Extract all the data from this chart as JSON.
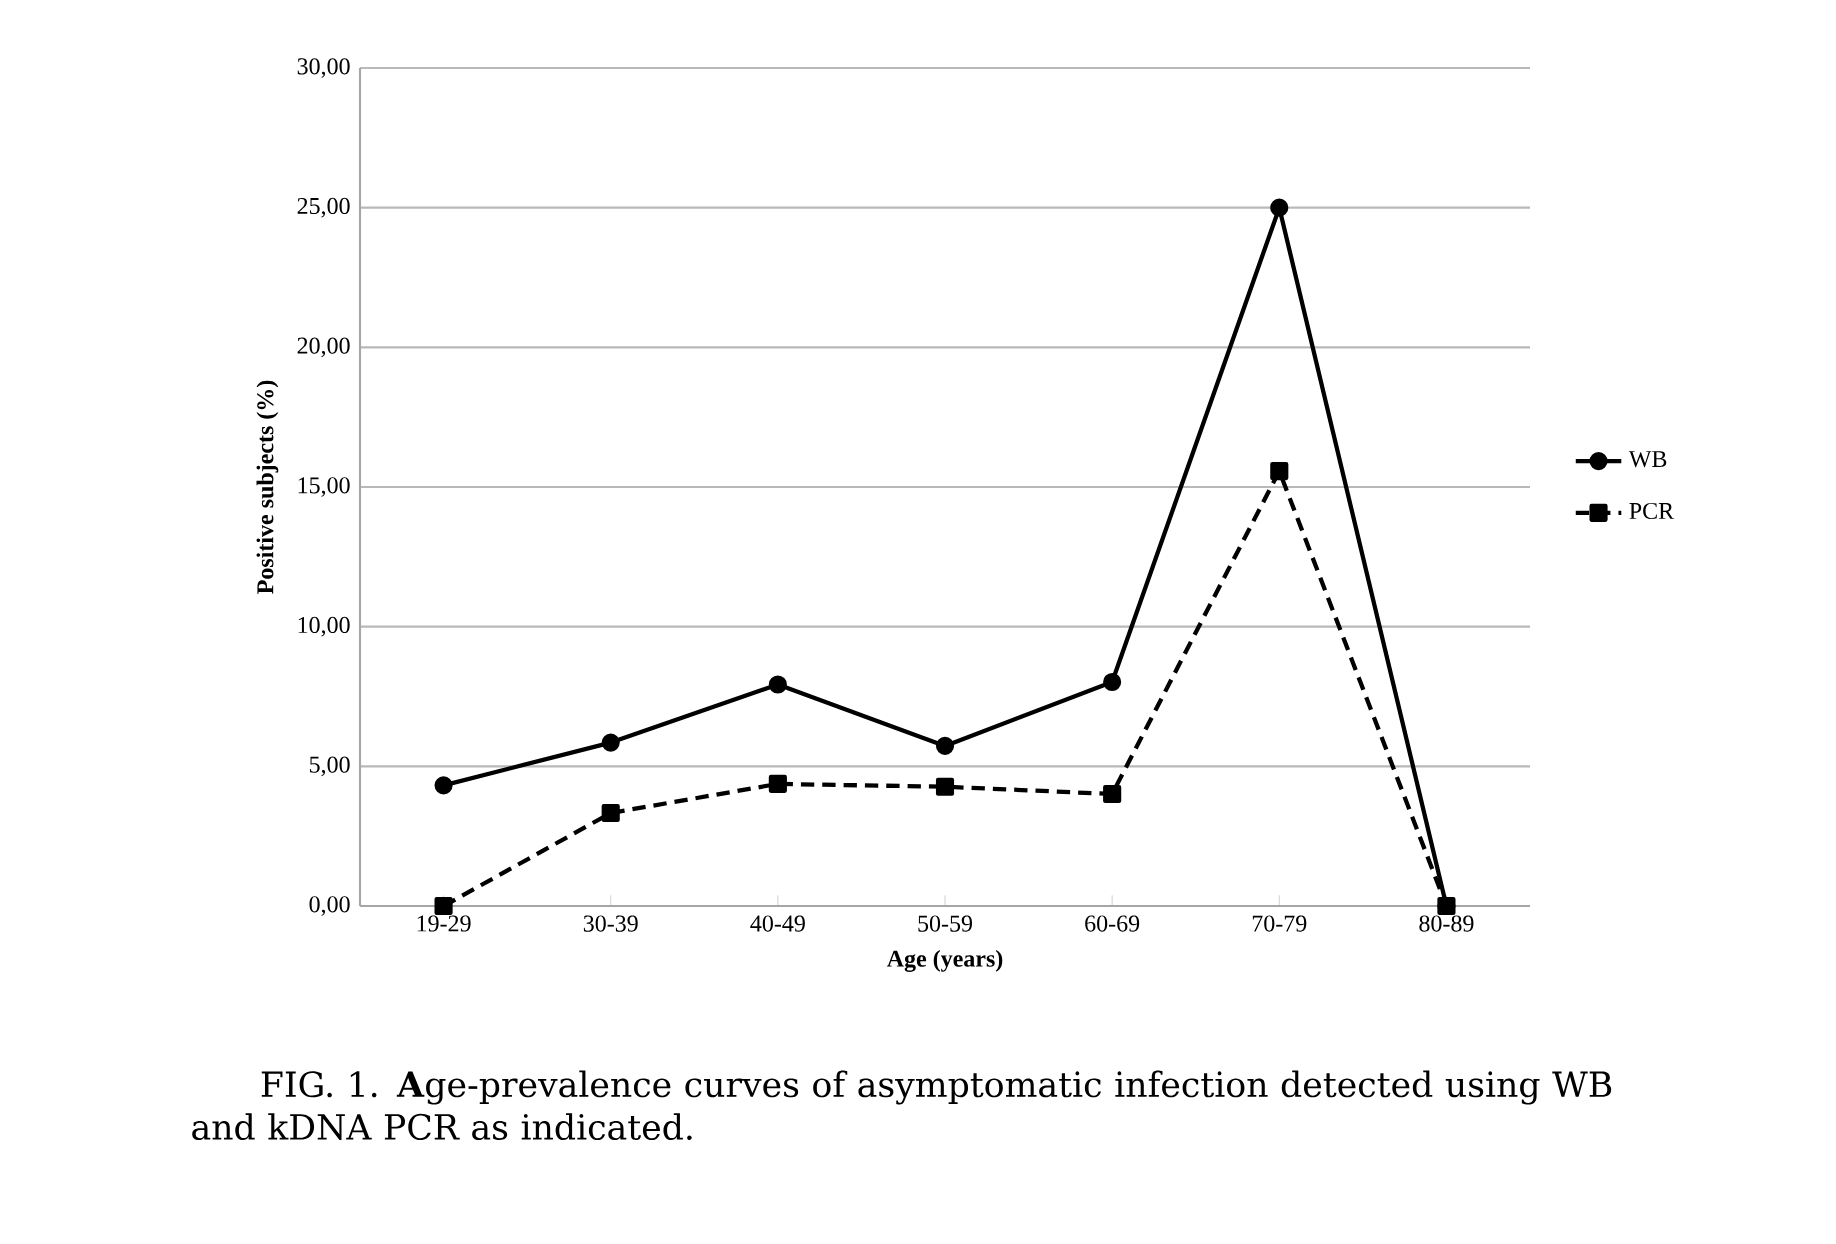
{
  "chart_data": {
    "type": "line",
    "xlabel": "Age (years)",
    "ylabel": "Positive subjects (%)",
    "categories": [
      "19-29",
      "30-39",
      "40-49",
      "50-59",
      "60-69",
      "70-79",
      "80-89"
    ],
    "series": [
      {
        "name": "WB",
        "color": "#000000",
        "marker": "circle",
        "line_style": "solid",
        "values": [
          4.32,
          5.85,
          7.93,
          5.73,
          8.02,
          25.0,
          0.0
        ]
      },
      {
        "name": "PCR",
        "color": "#000000",
        "marker": "square",
        "line_style": "dashed",
        "values": [
          0.0,
          3.33,
          4.37,
          4.27,
          4.01,
          15.57,
          0.0
        ]
      }
    ],
    "ylim": [
      0,
      30
    ],
    "yticks": [
      {
        "value": 0,
        "label": "0,00"
      },
      {
        "value": 5,
        "label": "5,00"
      },
      {
        "value": 10,
        "label": "10,00"
      },
      {
        "value": 15,
        "label": "15,00"
      },
      {
        "value": 20,
        "label": "20,00"
      },
      {
        "value": 25,
        "label": "25,00"
      },
      {
        "value": 30,
        "label": "30,00"
      }
    ],
    "grid": "y",
    "legend": "right",
    "annotations": [
      "FIG. 1. **A**ge-prevalence curves of asymptomatic infection detected using WB and kDNA PCR as indicated."
    ]
  }
}
